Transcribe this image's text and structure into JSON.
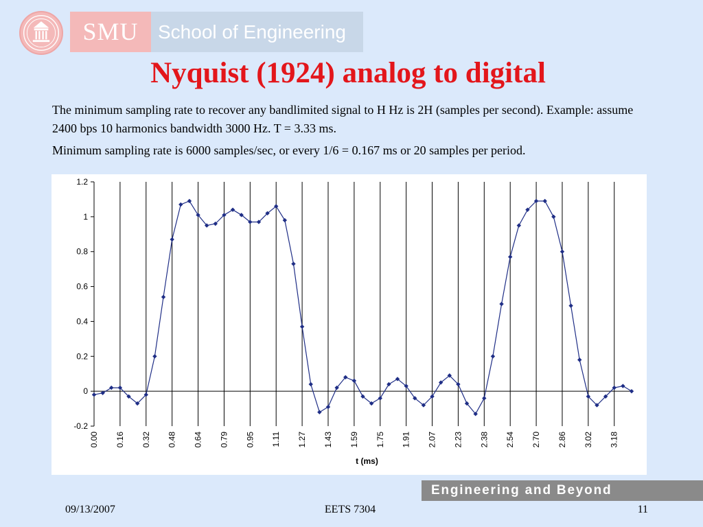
{
  "header": {
    "logo_brand": "SMU",
    "logo_school": "School of Engineering"
  },
  "slide": {
    "title": "Nyquist (1924) analog to digital",
    "paragraph_1": "The minimum sampling rate to recover any bandlimited signal to H Hz is 2H (samples per second). Example: assume 2400 bps 10 harmonics bandwidth 3000 Hz.  T = 3.33 ms.",
    "paragraph_2": "Minimum sampling rate is 6000 samples/sec, or every 1/6 = 0.167 ms or 20 samples per period."
  },
  "chart_data": {
    "type": "line",
    "title": "",
    "xlabel": "t (ms)",
    "ylabel": "",
    "ylim": [
      -0.2,
      1.2
    ],
    "y_ticks": [
      "-0.2",
      "0",
      "0.2",
      "0.4",
      "0.6",
      "0.8",
      "1",
      "1.2"
    ],
    "x_tick_labels": [
      "0.00",
      "0.16",
      "0.32",
      "0.48",
      "0.64",
      "0.79",
      "0.95",
      "1.11",
      "1.27",
      "1.43",
      "1.59",
      "1.75",
      "1.91",
      "2.07",
      "2.23",
      "2.38",
      "2.54",
      "2.70",
      "2.86",
      "3.02",
      "3.18"
    ],
    "vertical_gridlines": true,
    "series_color": "#1f2e86",
    "series": [
      {
        "values": [
          -0.02,
          -0.01,
          0.02,
          0.02,
          -0.03,
          -0.07,
          -0.02,
          0.2,
          0.54,
          0.87,
          1.07,
          1.09,
          1.01,
          0.95,
          0.96,
          1.01,
          1.04,
          1.01,
          0.97,
          0.97,
          1.02,
          1.06,
          0.98,
          0.73,
          0.37,
          0.04,
          -0.12,
          -0.09,
          0.02,
          0.08,
          0.06,
          -0.03,
          -0.07,
          -0.04,
          0.04,
          0.07,
          0.03,
          -0.04,
          -0.08,
          -0.03,
          0.05,
          0.09,
          0.04,
          -0.07,
          -0.13,
          -0.04,
          0.2,
          0.5,
          0.77,
          0.95,
          1.04,
          1.09,
          1.09,
          1.0,
          0.8,
          0.49,
          0.18,
          -0.03,
          -0.08,
          -0.03,
          0.02,
          0.03,
          0.0
        ]
      }
    ]
  },
  "footer": {
    "tagline": "Engineering and Beyond",
    "date": "09/13/2007",
    "course": "EETS 7304",
    "page_number": "11"
  }
}
